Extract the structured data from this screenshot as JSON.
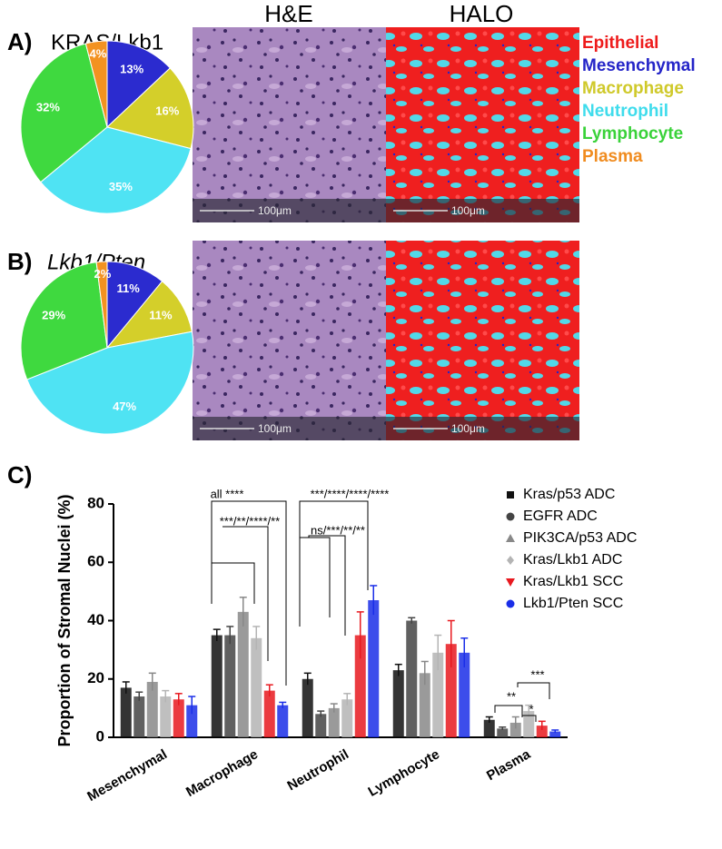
{
  "figure": {
    "panel_labels": [
      "A)",
      "B)",
      "C)"
    ],
    "image_titles": [
      "H&E",
      "HALO"
    ],
    "scale_bar": "100μm",
    "cell_types": [
      {
        "name": "Epithelial",
        "color": "#ee1c1c"
      },
      {
        "name": "Mesenchymal",
        "color": "#2424c8"
      },
      {
        "name": "Macrophage",
        "color": "#cfc92a"
      },
      {
        "name": "Neutrophil",
        "color": "#3fdcec"
      },
      {
        "name": "Lymphocyte",
        "color": "#3ad23a"
      },
      {
        "name": "Plasma",
        "color": "#f08c20"
      }
    ]
  },
  "chart_data": [
    {
      "type": "pie",
      "title": "KRAS/Lkb1",
      "values": [
        13,
        16,
        35,
        32,
        4
      ],
      "value_labels": [
        "13%",
        "16%",
        "35%",
        "32%",
        "4%"
      ],
      "colors": [
        "#2b2bcf",
        "#d4cf2a",
        "#4fe3f3",
        "#3fd93f",
        "#f39221"
      ]
    },
    {
      "type": "pie",
      "title": "Lkb1/Pten",
      "values": [
        11,
        11,
        47,
        29,
        2
      ],
      "value_labels": [
        "11%",
        "11%",
        "47%",
        "29%",
        "2%"
      ],
      "colors": [
        "#2b2bcf",
        "#d4cf2a",
        "#4fe3f3",
        "#3fd93f",
        "#f39221"
      ]
    },
    {
      "type": "bar",
      "y_label": "Proportion of Stromal Nuclei (%)",
      "categories": [
        "Mesenchymal",
        "Macrophage",
        "Neutrophil",
        "Lymphocyte",
        "Plasma"
      ],
      "ylim": [
        0,
        80
      ],
      "yticks": [
        0,
        20,
        40,
        60,
        80
      ],
      "series": [
        {
          "name": "Kras/p53 ADC",
          "color": "#111111",
          "marker": "square",
          "values": [
            17,
            35,
            20,
            23,
            6
          ],
          "errors": [
            2,
            2,
            2,
            2,
            1
          ]
        },
        {
          "name": "EGFR ADC",
          "color": "#444444",
          "marker": "circle",
          "values": [
            14,
            35,
            8,
            40,
            3
          ],
          "errors": [
            1.5,
            3,
            1,
            1,
            0.5
          ]
        },
        {
          "name": "PIK3CA/p53 ADC",
          "color": "#888888",
          "marker": "triangle",
          "values": [
            19,
            43,
            10,
            22,
            5
          ],
          "errors": [
            3,
            5,
            1.5,
            4,
            2
          ]
        },
        {
          "name": "Kras/Lkb1 ADC",
          "color": "#b4b4b4",
          "marker": "diamond",
          "values": [
            14,
            34,
            13,
            29,
            9
          ],
          "errors": [
            2,
            4,
            2,
            6,
            2
          ]
        },
        {
          "name": "Kras/Lkb1 SCC",
          "color": "#e8191f",
          "marker": "down-triangle",
          "values": [
            13,
            16,
            35,
            32,
            4
          ],
          "errors": [
            2,
            2,
            8,
            8,
            1.5
          ]
        },
        {
          "name": "Lkb1/Pten SCC",
          "color": "#1a2ee8",
          "marker": "circle",
          "values": [
            11,
            11,
            47,
            29,
            2
          ],
          "errors": [
            3,
            1,
            5,
            5,
            0.5
          ]
        }
      ],
      "annotations": [
        "all ****",
        "***/**/****/**",
        "***/****/****/****",
        "ns/***/**/**",
        "**",
        "*",
        "***"
      ]
    }
  ]
}
